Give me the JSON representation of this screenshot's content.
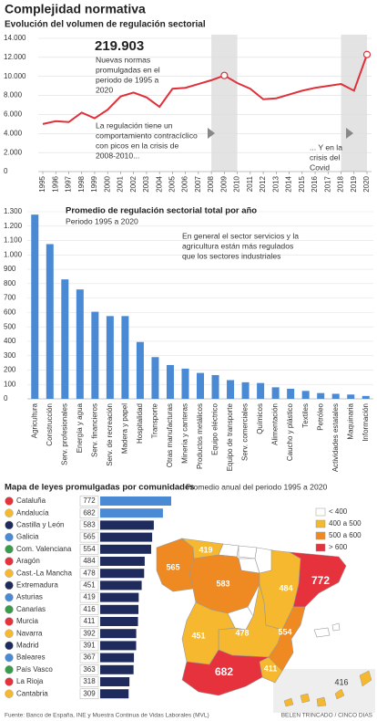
{
  "header": {
    "title": "Complejidad normativa",
    "subtitle": "Evolución del volumen de regulación sectorial"
  },
  "chart_data": [
    {
      "type": "line",
      "x": [
        "1995",
        "1996",
        "1997",
        "1998",
        "1999",
        "2000",
        "2001",
        "2002",
        "2003",
        "2004",
        "2005",
        "2006",
        "2007",
        "2008",
        "2009",
        "2010",
        "2011",
        "2012",
        "2013",
        "2014",
        "2015",
        "2016",
        "2017",
        "2018",
        "2019",
        "2020"
      ],
      "values": [
        5000,
        5300,
        5200,
        6200,
        5600,
        6500,
        7900,
        8300,
        7800,
        6800,
        8700,
        8800,
        9200,
        9600,
        10100,
        9300,
        8700,
        7600,
        7700,
        8100,
        8500,
        8800,
        9000,
        9200,
        8500,
        12300
      ],
      "color": "#e0303a",
      "ylim": [
        0,
        14000
      ],
      "yticks": [
        0,
        {
          "value": 2000,
          "label": "2.000"
        },
        {
          "value": 4000,
          "label": "4.000"
        },
        {
          "value": 6000,
          "label": "6.000"
        },
        {
          "value": 8000,
          "label": "8.000"
        },
        {
          "value": 10000,
          "label": "10.000"
        },
        {
          "value": 12000,
          "label": "12.000"
        },
        {
          "value": 14000,
          "label": "14.000"
        }
      ],
      "grid": true,
      "shaded_ranges": [
        [
          "2009",
          "2010"
        ],
        [
          "2019",
          "2020"
        ]
      ],
      "markers": [
        "2009",
        "2020"
      ],
      "annotations": [
        {
          "headline": "219.903",
          "lines": [
            "Nuevas normas",
            "promulgadas en el",
            "periodo de 1995 a",
            "2020"
          ]
        },
        {
          "lines": [
            "La regulación tiene un",
            "comportamiento contracíclico",
            "con picos en la crisis de",
            "2008-2010..."
          ]
        },
        {
          "lines": [
            "... Y en la",
            "crisis del",
            "Covid"
          ]
        }
      ]
    },
    {
      "type": "bar",
      "title": "Promedio de regulación sectorial total por año",
      "subtitle": "Periodo 1995 a 2020",
      "categories": [
        "Agricultura",
        "Construcción",
        "Serv. profesionales",
        "Energía y agua",
        "Serv. financieros",
        "Serv. de recreación",
        "Madera y papel",
        "Hospitalidad",
        "Transporte",
        "Otras manufacturas",
        "Minería y canteras",
        "Productos metálicos",
        "Equipo eléctrico",
        "Equipo de transporte",
        "Serv. comerciales",
        "Químicos",
        "Alimentación",
        "Caucho y plástico",
        "Textiles",
        "Petróleo",
        "Actividades estatales",
        "Maquinaria",
        "Información"
      ],
      "values": [
        1280,
        1075,
        830,
        760,
        605,
        575,
        575,
        395,
        290,
        235,
        210,
        180,
        165,
        130,
        115,
        110,
        80,
        70,
        55,
        40,
        35,
        30,
        20
      ],
      "color": "#4a8ad4",
      "ylim": [
        0,
        1300
      ],
      "yticks": [
        0,
        100,
        200,
        300,
        400,
        500,
        600,
        700,
        800,
        900,
        {
          "value": 1000,
          "label": "1.000"
        },
        {
          "value": 1100,
          "label": "1.100"
        },
        {
          "value": 1200,
          "label": "1.200"
        },
        {
          "value": 1300,
          "label": "1.300"
        }
      ],
      "grid": true,
      "annotation": [
        "En general el sector servicios y la",
        "agricultura están más regulados",
        "que los sectores industriales"
      ]
    },
    {
      "type": "barh",
      "title": "Mapa de leyes promulgadas por comunidades",
      "subtitle": "Promedio anual del periodo 1995 a 2020",
      "categories": [
        "Cataluña",
        "Andalucía",
        "Castilla y León",
        "Galicia",
        "Com. Valenciana",
        "Aragón",
        "Cast.-La Mancha",
        "Extremadura",
        "Asturias",
        "Canarias",
        "Murcia",
        "Navarra",
        "Madrid",
        "Baleares",
        "País Vasco",
        "La Rioja",
        "Cantabria"
      ],
      "values": [
        772,
        682,
        583,
        565,
        554,
        484,
        478,
        451,
        419,
        416,
        411,
        392,
        391,
        367,
        363,
        318,
        309
      ],
      "color": "#1f2b5c",
      "highlight": [
        "Cataluña",
        "Andalucía"
      ],
      "highlight_color": "#4a8ad4",
      "legend": [
        {
          "label": "< 400",
          "color": "#ffffff"
        },
        {
          "label": "400 a 500",
          "color": "#f5b82e"
        },
        {
          "label": "500 a 600",
          "color": "#ef8a22"
        },
        {
          "label": "> 600",
          "color": "#e5323c"
        }
      ]
    }
  ],
  "footer": {
    "source": "Fuente: Banco de España, INE y Muestra Continua de Vidas Laborales (MVL)",
    "credit": "BELÉN TRINCADO / CINCO DÍAS"
  }
}
